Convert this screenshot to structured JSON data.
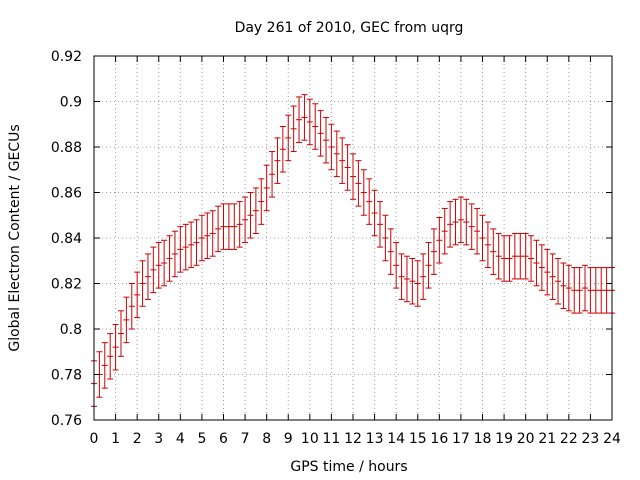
{
  "chart_data": {
    "type": "scatter",
    "title": "Day 261 of 2010, GEC from uqrg",
    "xlabel": "GPS time / hours",
    "ylabel": "Global Electron Content / GECUs",
    "xlim": [
      0,
      24
    ],
    "ylim": [
      0.76,
      0.92
    ],
    "xticks": [
      0,
      1,
      2,
      3,
      4,
      5,
      6,
      7,
      8,
      9,
      10,
      11,
      12,
      13,
      14,
      15,
      16,
      17,
      18,
      19,
      20,
      21,
      22,
      23,
      24
    ],
    "yticks": [
      0.76,
      0.78,
      0.8,
      0.82,
      0.84,
      0.86,
      0.88,
      0.9,
      0.92
    ],
    "grid": true,
    "legend": "none",
    "series_color": "#cc0000",
    "series": [
      {
        "x": [
          0,
          0.25,
          0.5,
          0.75,
          1,
          1.25,
          1.5,
          1.75,
          2,
          2.25,
          2.5,
          2.75,
          3,
          3.25,
          3.5,
          3.75,
          4,
          4.25,
          4.5,
          4.75,
          5,
          5.25,
          5.5,
          5.75,
          6,
          6.25,
          6.5,
          6.75,
          7,
          7.25,
          7.5,
          7.75,
          8,
          8.25,
          8.5,
          8.75,
          9,
          9.25,
          9.5,
          9.75,
          10,
          10.25,
          10.5,
          10.75,
          11,
          11.25,
          11.5,
          11.75,
          12,
          12.25,
          12.5,
          12.75,
          13,
          13.25,
          13.5,
          13.75,
          14,
          14.25,
          14.5,
          14.75,
          15,
          15.25,
          15.5,
          15.75,
          16,
          16.25,
          16.5,
          16.75,
          17,
          17.25,
          17.5,
          17.75,
          18,
          18.25,
          18.5,
          18.75,
          19,
          19.25,
          19.5,
          19.75,
          20,
          20.25,
          20.5,
          20.75,
          21,
          21.25,
          21.5,
          21.75,
          22,
          22.25,
          22.5,
          22.75,
          23,
          23.25,
          23.5,
          23.75,
          24
        ],
        "y": [
          0.776,
          0.78,
          0.784,
          0.788,
          0.792,
          0.798,
          0.804,
          0.81,
          0.815,
          0.82,
          0.823,
          0.826,
          0.828,
          0.829,
          0.831,
          0.833,
          0.835,
          0.836,
          0.837,
          0.838,
          0.84,
          0.841,
          0.842,
          0.844,
          0.845,
          0.845,
          0.845,
          0.846,
          0.848,
          0.85,
          0.852,
          0.856,
          0.862,
          0.868,
          0.874,
          0.879,
          0.884,
          0.888,
          0.892,
          0.893,
          0.891,
          0.889,
          0.886,
          0.883,
          0.88,
          0.877,
          0.874,
          0.871,
          0.867,
          0.864,
          0.86,
          0.856,
          0.851,
          0.846,
          0.84,
          0.834,
          0.828,
          0.823,
          0.822,
          0.821,
          0.82,
          0.823,
          0.828,
          0.834,
          0.839,
          0.843,
          0.846,
          0.847,
          0.848,
          0.847,
          0.845,
          0.843,
          0.84,
          0.837,
          0.834,
          0.832,
          0.831,
          0.831,
          0.832,
          0.832,
          0.832,
          0.831,
          0.829,
          0.827,
          0.825,
          0.823,
          0.821,
          0.819,
          0.818,
          0.817,
          0.817,
          0.818,
          0.817,
          0.817,
          0.817,
          0.817,
          0.817
        ],
        "err": 0.01
      }
    ]
  }
}
